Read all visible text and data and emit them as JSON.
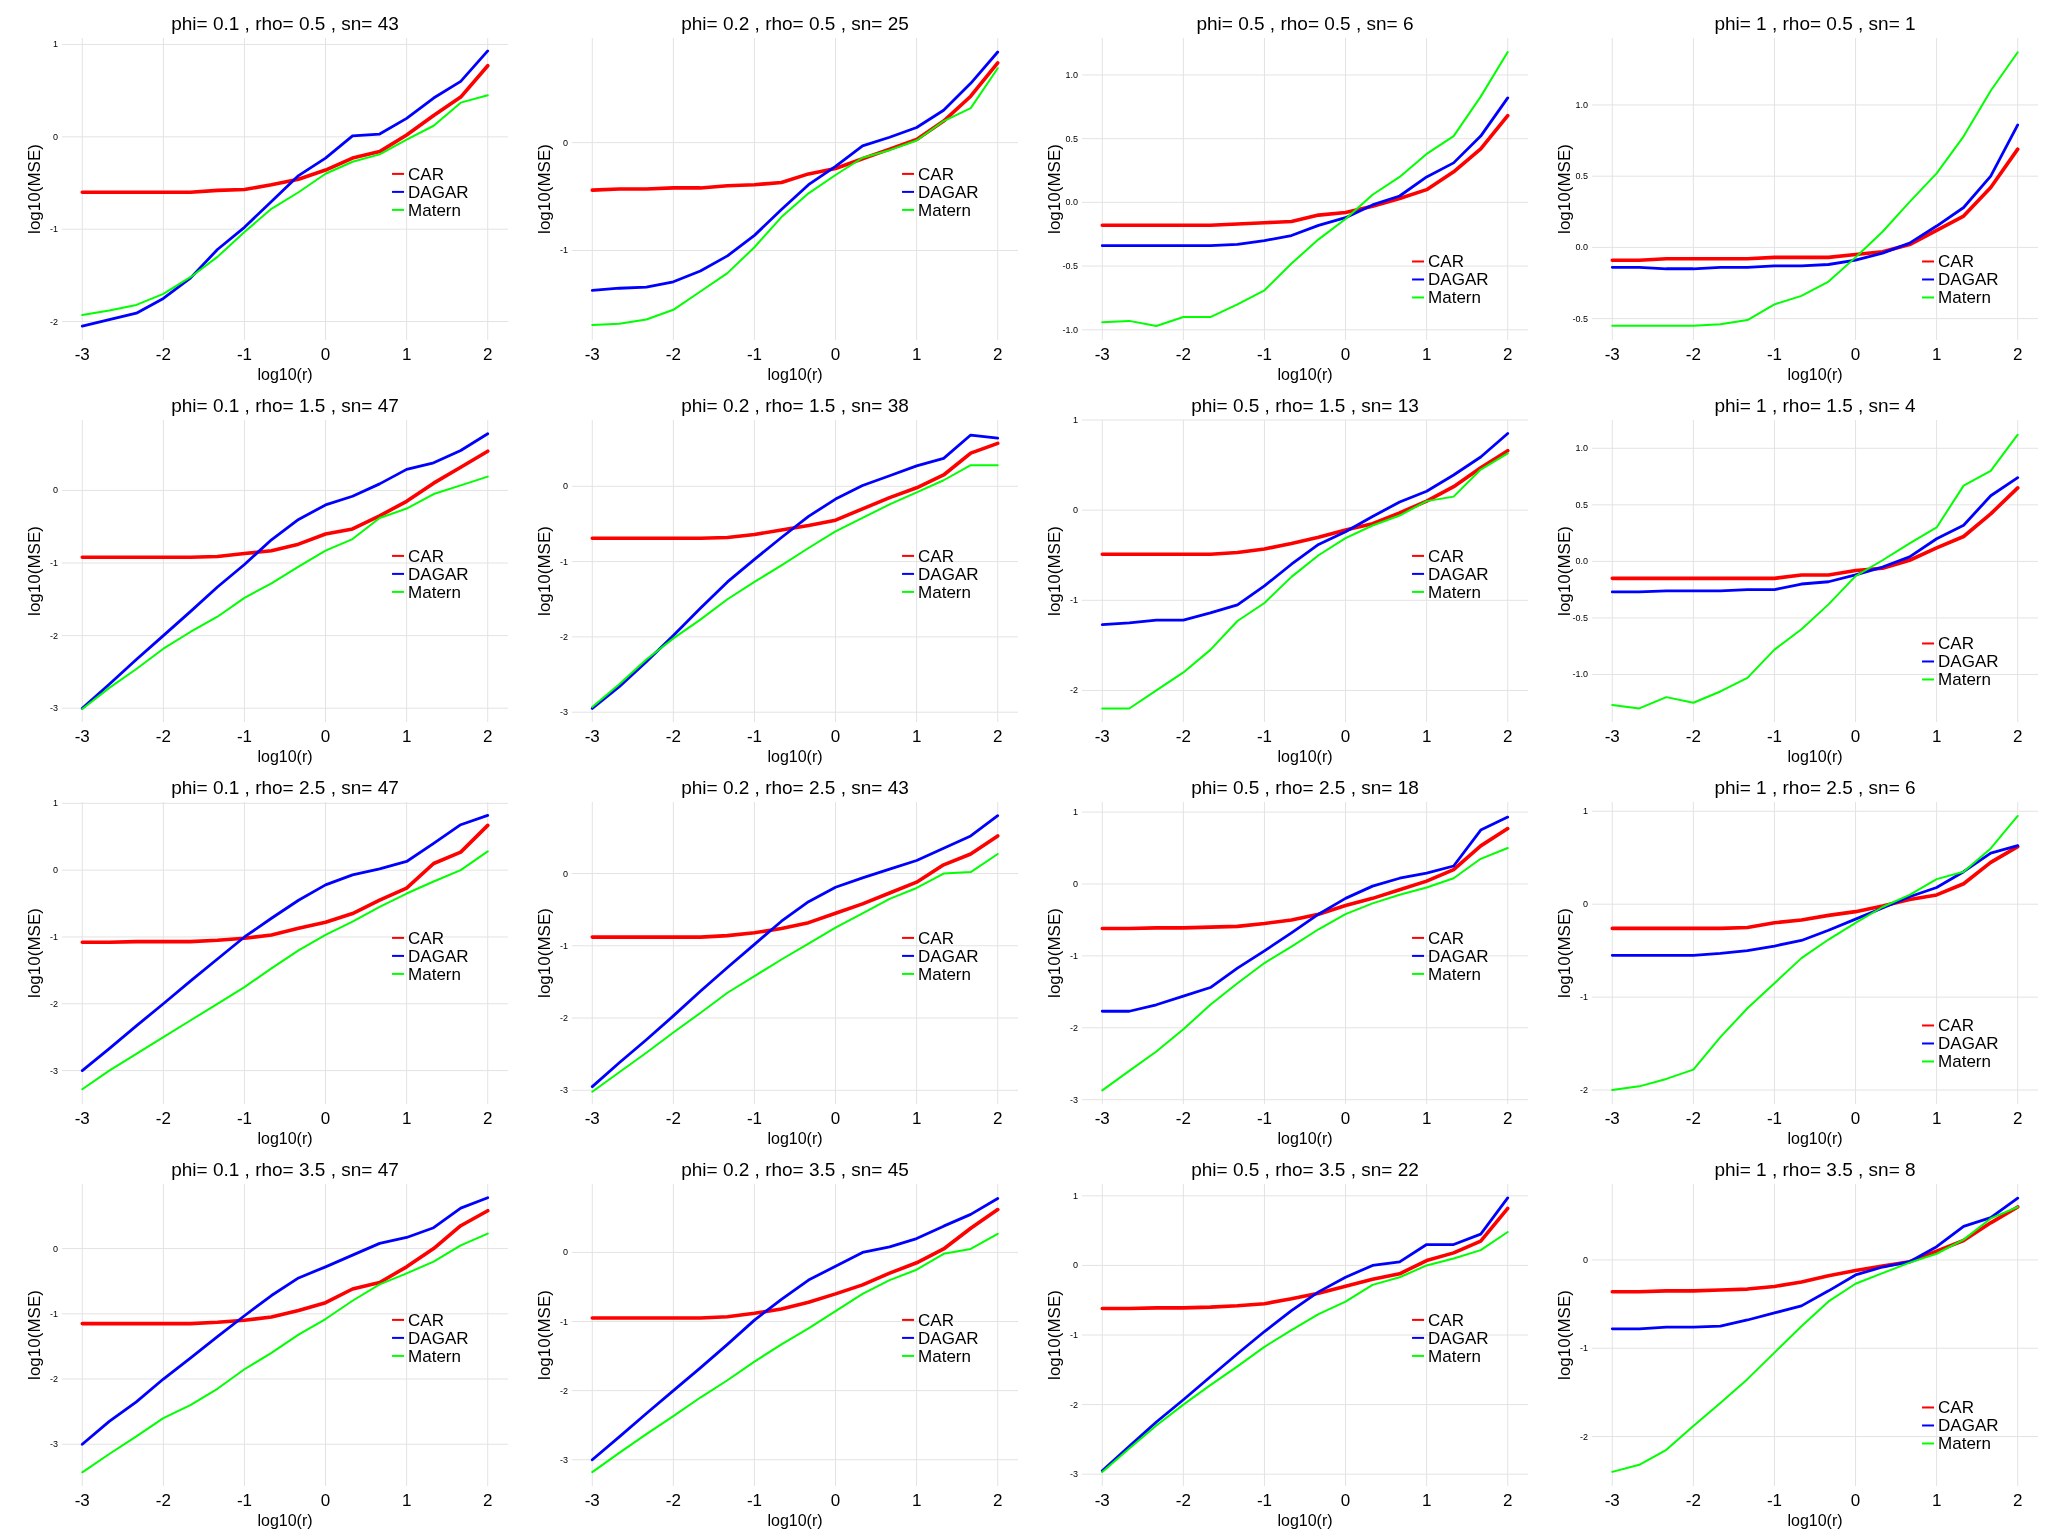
{
  "chart_data": [
    {
      "type": "line",
      "title": "phi= 0.1 , rho= 0.5 , sn= 43",
      "xlabel": "log10(r)",
      "ylabel": "log10(MSE)",
      "x": [
        -3,
        -2.667,
        -2.333,
        -2,
        -1.667,
        -1.333,
        -1,
        -0.667,
        -0.333,
        0,
        0.333,
        0.667,
        1,
        1.333,
        1.667,
        2
      ],
      "xlim": [
        -3.25,
        2.25
      ],
      "xticks": [
        -3,
        -2,
        -1,
        0,
        1,
        2
      ],
      "ylim": [
        -2.2,
        1.07
      ],
      "yticks": [
        -2,
        -1,
        0,
        1
      ],
      "grid": true,
      "legend": "right",
      "series": [
        {
          "name": "CAR",
          "color": "#ff0000",
          "values": [
            -0.6,
            -0.6,
            -0.6,
            -0.6,
            -0.6,
            -0.58,
            -0.57,
            -0.52,
            -0.46,
            -0.36,
            -0.23,
            -0.16,
            0.02,
            0.23,
            0.43,
            0.77
          ]
        },
        {
          "name": "DAGAR",
          "color": "#0000ff",
          "values": [
            -2.05,
            -1.98,
            -1.91,
            -1.75,
            -1.53,
            -1.22,
            -0.98,
            -0.7,
            -0.42,
            -0.23,
            0.01,
            0.03,
            0.2,
            0.42,
            0.6,
            0.93
          ]
        },
        {
          "name": "Matern",
          "color": "#00ff00",
          "values": [
            -1.93,
            -1.88,
            -1.82,
            -1.7,
            -1.52,
            -1.3,
            -1.03,
            -0.78,
            -0.6,
            -0.4,
            -0.27,
            -0.19,
            -0.03,
            0.12,
            0.37,
            0.45
          ]
        }
      ]
    },
    {
      "type": "line",
      "title": "phi= 0.2 , rho= 0.5 , sn= 25",
      "xlabel": "log10(r)",
      "ylabel": "log10(MSE)",
      "x": [
        -3,
        -2.667,
        -2.333,
        -2,
        -1.667,
        -1.333,
        -1,
        -0.667,
        -0.333,
        0,
        0.333,
        0.667,
        1,
        1.333,
        1.667,
        2
      ],
      "xlim": [
        -3.25,
        2.25
      ],
      "xticks": [
        -3,
        -2,
        -1,
        0,
        1,
        2
      ],
      "ylim": [
        -1.83,
        0.97
      ],
      "yticks": [
        -1,
        0
      ],
      "grid": true,
      "legend": "right",
      "series": [
        {
          "name": "CAR",
          "color": "#ff0000",
          "values": [
            -0.44,
            -0.43,
            -0.43,
            -0.42,
            -0.42,
            -0.4,
            -0.39,
            -0.37,
            -0.29,
            -0.24,
            -0.15,
            -0.06,
            0.03,
            0.2,
            0.43,
            0.74
          ]
        },
        {
          "name": "DAGAR",
          "color": "#0000ff",
          "values": [
            -1.37,
            -1.35,
            -1.34,
            -1.29,
            -1.19,
            -1.05,
            -0.86,
            -0.62,
            -0.39,
            -0.22,
            -0.03,
            0.05,
            0.14,
            0.3,
            0.55,
            0.84
          ]
        },
        {
          "name": "Matern",
          "color": "#00ff00",
          "values": [
            -1.69,
            -1.68,
            -1.64,
            -1.55,
            -1.38,
            -1.21,
            -0.97,
            -0.69,
            -0.47,
            -0.3,
            -0.14,
            -0.07,
            0.02,
            0.2,
            0.32,
            0.69
          ]
        }
      ]
    },
    {
      "type": "line",
      "title": "phi= 0.5 , rho= 0.5 , sn= 6",
      "xlabel": "log10(r)",
      "ylabel": "log10(MSE)",
      "x": [
        -3,
        -2.667,
        -2.333,
        -2,
        -1.667,
        -1.333,
        -1,
        -0.667,
        -0.333,
        0,
        0.333,
        0.667,
        1,
        1.333,
        1.667,
        2
      ],
      "xlim": [
        -3.25,
        2.25
      ],
      "xticks": [
        -3,
        -2,
        -1,
        0,
        1,
        2
      ],
      "ylim": [
        -1.08,
        1.29
      ],
      "yticks": [
        {
          "value": -1,
          "label": "-1.0"
        },
        -0.5,
        {
          "value": 0,
          "label": "0.0"
        },
        0.5,
        {
          "value": 1,
          "label": "1.0"
        }
      ],
      "grid": true,
      "legend": "bottom right",
      "series": [
        {
          "name": "CAR",
          "color": "#ff0000",
          "values": [
            -0.18,
            -0.18,
            -0.18,
            -0.18,
            -0.18,
            -0.17,
            -0.16,
            -0.15,
            -0.1,
            -0.08,
            -0.03,
            0.03,
            0.1,
            0.24,
            0.42,
            0.68
          ]
        },
        {
          "name": "DAGAR",
          "color": "#0000ff",
          "values": [
            -0.34,
            -0.34,
            -0.34,
            -0.34,
            -0.34,
            -0.33,
            -0.3,
            -0.26,
            -0.18,
            -0.12,
            -0.02,
            0.05,
            0.2,
            0.31,
            0.52,
            0.82
          ]
        },
        {
          "name": "Matern",
          "color": "#00ff00",
          "values": [
            -0.94,
            -0.93,
            -0.97,
            -0.9,
            -0.9,
            -0.8,
            -0.69,
            -0.48,
            -0.29,
            -0.13,
            0.06,
            0.2,
            0.38,
            0.52,
            0.83,
            1.18
          ]
        }
      ]
    },
    {
      "type": "line",
      "title": "phi= 1 , rho= 0.5 , sn= 1",
      "xlabel": "log10(r)",
      "ylabel": "log10(MSE)",
      "x": [
        -3,
        -2.667,
        -2.333,
        -2,
        -1.667,
        -1.333,
        -1,
        -0.667,
        -0.333,
        0,
        0.333,
        0.667,
        1,
        1.333,
        1.667,
        2
      ],
      "xlim": [
        -3.25,
        2.25
      ],
      "xticks": [
        -3,
        -2,
        -1,
        0,
        1,
        2
      ],
      "ylim": [
        -0.65,
        1.47
      ],
      "yticks": [
        -0.5,
        {
          "value": 0,
          "label": "0.0"
        },
        0.5,
        {
          "value": 1,
          "label": "1.0"
        }
      ],
      "grid": true,
      "legend": "bottom right",
      "series": [
        {
          "name": "CAR",
          "color": "#ff0000",
          "values": [
            -0.09,
            -0.09,
            -0.08,
            -0.08,
            -0.08,
            -0.08,
            -0.07,
            -0.07,
            -0.07,
            -0.05,
            -0.03,
            0.02,
            0.12,
            0.22,
            0.42,
            0.69
          ]
        },
        {
          "name": "DAGAR",
          "color": "#0000ff",
          "values": [
            -0.14,
            -0.14,
            -0.15,
            -0.15,
            -0.14,
            -0.14,
            -0.13,
            -0.13,
            -0.12,
            -0.09,
            -0.04,
            0.03,
            0.15,
            0.28,
            0.5,
            0.86
          ]
        },
        {
          "name": "Matern",
          "color": "#00ff00",
          "values": [
            -0.55,
            -0.55,
            -0.55,
            -0.55,
            -0.54,
            -0.51,
            -0.4,
            -0.34,
            -0.24,
            -0.07,
            0.11,
            0.32,
            0.52,
            0.78,
            1.1,
            1.37
          ]
        }
      ]
    },
    {
      "type": "line",
      "title": "phi= 0.1 , rho= 1.5 , sn= 47",
      "xlabel": "log10(r)",
      "ylabel": "log10(MSE)",
      "x": [
        -3,
        -2.667,
        -2.333,
        -2,
        -1.667,
        -1.333,
        -1,
        -0.667,
        -0.333,
        0,
        0.333,
        0.667,
        1,
        1.333,
        1.667,
        2
      ],
      "xlim": [
        -3.25,
        2.25
      ],
      "xticks": [
        -3,
        -2,
        -1,
        0,
        1,
        2
      ],
      "ylim": [
        -3.19,
        0.97
      ],
      "yticks": [
        -3,
        -2,
        -1,
        0
      ],
      "grid": true,
      "legend": "right",
      "series": [
        {
          "name": "CAR",
          "color": "#ff0000",
          "values": [
            -0.92,
            -0.92,
            -0.92,
            -0.92,
            -0.92,
            -0.91,
            -0.87,
            -0.83,
            -0.74,
            -0.6,
            -0.53,
            -0.35,
            -0.15,
            0.1,
            0.32,
            0.54
          ]
        },
        {
          "name": "DAGAR",
          "color": "#0000ff",
          "values": [
            -3,
            -2.67,
            -2.33,
            -2,
            -1.67,
            -1.33,
            -1.02,
            -0.68,
            -0.4,
            -0.2,
            -0.08,
            0.09,
            0.29,
            0.38,
            0.55,
            0.78
          ]
        },
        {
          "name": "Matern",
          "color": "#00ff00",
          "values": [
            -3.01,
            -2.72,
            -2.46,
            -2.18,
            -1.95,
            -1.74,
            -1.48,
            -1.28,
            -1.05,
            -0.83,
            -0.67,
            -0.38,
            -0.25,
            -0.05,
            0.07,
            0.19
          ]
        }
      ]
    },
    {
      "type": "line",
      "title": "phi= 0.2 , rho= 1.5 , sn= 38",
      "xlabel": "log10(r)",
      "ylabel": "log10(MSE)",
      "x": [
        -3,
        -2.667,
        -2.333,
        -2,
        -1.667,
        -1.333,
        -1,
        -0.667,
        -0.333,
        0,
        0.333,
        0.667,
        1,
        1.333,
        1.667,
        2
      ],
      "xlim": [
        -3.25,
        2.25
      ],
      "xticks": [
        -3,
        -2,
        -1,
        0,
        1,
        2
      ],
      "ylim": [
        -3.13,
        0.88
      ],
      "yticks": [
        -3,
        -2,
        -1,
        0
      ],
      "grid": true,
      "legend": "right",
      "series": [
        {
          "name": "CAR",
          "color": "#ff0000",
          "values": [
            -0.69,
            -0.69,
            -0.69,
            -0.69,
            -0.69,
            -0.68,
            -0.64,
            -0.58,
            -0.52,
            -0.45,
            -0.3,
            -0.15,
            -0.02,
            0.15,
            0.44,
            0.57
          ]
        },
        {
          "name": "DAGAR",
          "color": "#0000ff",
          "values": [
            -2.95,
            -2.66,
            -2.33,
            -1.98,
            -1.62,
            -1.27,
            -0.97,
            -0.68,
            -0.4,
            -0.17,
            0.01,
            0.14,
            0.27,
            0.37,
            0.68,
            0.64
          ]
        },
        {
          "name": "Matern",
          "color": "#00ff00",
          "values": [
            -2.93,
            -2.63,
            -2.3,
            -2.02,
            -1.77,
            -1.5,
            -1.27,
            -1.05,
            -0.82,
            -0.6,
            -0.42,
            -0.24,
            -0.08,
            0.08,
            0.28,
            0.28
          ]
        }
      ]
    },
    {
      "type": "line",
      "title": "phi= 0.5 , rho= 1.5 , sn= 13",
      "xlabel": "log10(r)",
      "ylabel": "log10(MSE)",
      "x": [
        -3,
        -2.667,
        -2.333,
        -2,
        -1.667,
        -1.333,
        -1,
        -0.667,
        -0.333,
        0,
        0.333,
        0.667,
        1,
        1.333,
        1.667,
        2
      ],
      "xlim": [
        -3.25,
        2.25
      ],
      "xticks": [
        -3,
        -2,
        -1,
        0,
        1,
        2
      ],
      "ylim": [
        -2.35,
        1
      ],
      "yticks": [
        -2,
        -1,
        0,
        1
      ],
      "grid": true,
      "legend": "right",
      "series": [
        {
          "name": "CAR",
          "color": "#ff0000",
          "values": [
            -0.49,
            -0.49,
            -0.49,
            -0.49,
            -0.49,
            -0.47,
            -0.43,
            -0.37,
            -0.3,
            -0.22,
            -0.15,
            -0.03,
            0.1,
            0.26,
            0.47,
            0.66
          ]
        },
        {
          "name": "DAGAR",
          "color": "#0000ff",
          "values": [
            -1.27,
            -1.25,
            -1.22,
            -1.22,
            -1.14,
            -1.05,
            -0.84,
            -0.6,
            -0.38,
            -0.24,
            -0.07,
            0.09,
            0.21,
            0.39,
            0.59,
            0.85
          ]
        },
        {
          "name": "Matern",
          "color": "#00ff00",
          "values": [
            -2.2,
            -2.2,
            -2,
            -1.8,
            -1.55,
            -1.23,
            -1.03,
            -0.74,
            -0.5,
            -0.31,
            -0.17,
            -0.06,
            0.1,
            0.15,
            0.45,
            0.63
          ]
        }
      ]
    },
    {
      "type": "line",
      "title": "phi= 1 , rho= 1.5 , sn= 4",
      "xlabel": "log10(r)",
      "ylabel": "log10(MSE)",
      "x": [
        -3,
        -2.667,
        -2.333,
        -2,
        -1.667,
        -1.333,
        -1,
        -0.667,
        -0.333,
        0,
        0.333,
        0.667,
        1,
        1.333,
        1.667,
        2
      ],
      "xlim": [
        -3.25,
        2.25
      ],
      "xticks": [
        -3,
        -2,
        -1,
        0,
        1,
        2
      ],
      "ylim": [
        -1.42,
        1.25
      ],
      "yticks": [
        {
          "value": -1,
          "label": "-1.0"
        },
        -0.5,
        {
          "value": 0,
          "label": "0.0"
        },
        0.5,
        {
          "value": 1,
          "label": "1.0"
        }
      ],
      "grid": true,
      "legend": "bottom right",
      "series": [
        {
          "name": "CAR",
          "color": "#ff0000",
          "values": [
            -0.15,
            -0.15,
            -0.15,
            -0.15,
            -0.15,
            -0.15,
            -0.15,
            -0.12,
            -0.12,
            -0.08,
            -0.06,
            0.01,
            0.12,
            0.22,
            0.42,
            0.65
          ]
        },
        {
          "name": "DAGAR",
          "color": "#0000ff",
          "values": [
            -0.27,
            -0.27,
            -0.26,
            -0.26,
            -0.26,
            -0.25,
            -0.25,
            -0.2,
            -0.18,
            -0.12,
            -0.05,
            0.04,
            0.2,
            0.32,
            0.58,
            0.74
          ]
        },
        {
          "name": "Matern",
          "color": "#00ff00",
          "values": [
            -1.27,
            -1.3,
            -1.2,
            -1.25,
            -1.15,
            -1.03,
            -0.78,
            -0.6,
            -0.38,
            -0.13,
            0.01,
            0.16,
            0.3,
            0.67,
            0.8,
            1.12
          ]
        }
      ]
    },
    {
      "type": "line",
      "title": "phi= 0.1 , rho= 2.5 , sn= 47",
      "xlabel": "log10(r)",
      "ylabel": "log10(MSE)",
      "x": [
        -3,
        -2.667,
        -2.333,
        -2,
        -1.667,
        -1.333,
        -1,
        -0.667,
        -0.333,
        0,
        0.333,
        0.667,
        1,
        1.333,
        1.667,
        2
      ],
      "xlim": [
        -3.25,
        2.25
      ],
      "xticks": [
        -3,
        -2,
        -1,
        0,
        1,
        2
      ],
      "ylim": [
        -3.5,
        1.02
      ],
      "yticks": [
        -3,
        -2,
        -1,
        0,
        1
      ],
      "grid": true,
      "legend": "right",
      "series": [
        {
          "name": "CAR",
          "color": "#ff0000",
          "values": [
            -1.08,
            -1.08,
            -1.07,
            -1.07,
            -1.07,
            -1.05,
            -1.02,
            -0.97,
            -0.87,
            -0.78,
            -0.65,
            -0.45,
            -0.27,
            0.1,
            0.27,
            0.67
          ]
        },
        {
          "name": "DAGAR",
          "color": "#0000ff",
          "values": [
            -3,
            -2.67,
            -2.33,
            -2,
            -1.66,
            -1.33,
            -1,
            -0.72,
            -0.45,
            -0.22,
            -0.07,
            0.02,
            0.13,
            0.4,
            0.68,
            0.82
          ]
        },
        {
          "name": "Matern",
          "color": "#00ff00",
          "values": [
            -3.28,
            -3,
            -2.75,
            -2.5,
            -2.25,
            -2,
            -1.75,
            -1.47,
            -1.2,
            -0.97,
            -0.77,
            -0.55,
            -0.35,
            -0.17,
            0,
            0.28
          ]
        }
      ]
    },
    {
      "type": "line",
      "title": "phi= 0.2 , rho= 2.5 , sn= 43",
      "xlabel": "log10(r)",
      "ylabel": "log10(MSE)",
      "x": [
        -3,
        -2.667,
        -2.333,
        -2,
        -1.667,
        -1.333,
        -1,
        -0.667,
        -0.333,
        0,
        0.333,
        0.667,
        1,
        1.333,
        1.667,
        2
      ],
      "xlim": [
        -3.25,
        2.25
      ],
      "xticks": [
        -3,
        -2,
        -1,
        0,
        1,
        2
      ],
      "ylim": [
        -3.19,
        0.99
      ],
      "yticks": [
        -3,
        -2,
        -1,
        0
      ],
      "grid": true,
      "legend": "right",
      "series": [
        {
          "name": "CAR",
          "color": "#ff0000",
          "values": [
            -0.88,
            -0.88,
            -0.88,
            -0.88,
            -0.88,
            -0.86,
            -0.82,
            -0.76,
            -0.68,
            -0.55,
            -0.42,
            -0.27,
            -0.12,
            0.12,
            0.27,
            0.52
          ]
        },
        {
          "name": "DAGAR",
          "color": "#0000ff",
          "values": [
            -2.95,
            -2.62,
            -2.3,
            -1.97,
            -1.63,
            -1.3,
            -0.98,
            -0.66,
            -0.39,
            -0.19,
            -0.06,
            0.06,
            0.18,
            0.35,
            0.52,
            0.8
          ]
        },
        {
          "name": "Matern",
          "color": "#00ff00",
          "values": [
            -3.02,
            -2.75,
            -2.48,
            -2.2,
            -1.93,
            -1.65,
            -1.42,
            -1.19,
            -0.97,
            -0.75,
            -0.55,
            -0.35,
            -0.2,
            0,
            0.02,
            0.27
          ]
        }
      ]
    },
    {
      "type": "line",
      "title": "phi= 0.5 , rho= 2.5 , sn= 18",
      "xlabel": "log10(r)",
      "ylabel": "log10(MSE)",
      "x": [
        -3,
        -2.667,
        -2.333,
        -2,
        -1.667,
        -1.333,
        -1,
        -0.667,
        -0.333,
        0,
        0.333,
        0.667,
        1,
        1.333,
        1.667,
        2
      ],
      "xlim": [
        -3.25,
        2.25
      ],
      "xticks": [
        -3,
        -2,
        -1,
        0,
        1,
        2
      ],
      "ylim": [
        -3.06,
        1.14
      ],
      "yticks": [
        -3,
        -2,
        -1,
        0,
        1
      ],
      "grid": true,
      "legend": "right",
      "series": [
        {
          "name": "CAR",
          "color": "#ff0000",
          "values": [
            -0.62,
            -0.62,
            -0.61,
            -0.61,
            -0.6,
            -0.59,
            -0.55,
            -0.5,
            -0.42,
            -0.3,
            -0.2,
            -0.08,
            0.04,
            0.2,
            0.53,
            0.77
          ]
        },
        {
          "name": "DAGAR",
          "color": "#0000ff",
          "values": [
            -1.77,
            -1.77,
            -1.68,
            -1.56,
            -1.44,
            -1.17,
            -0.93,
            -0.68,
            -0.42,
            -0.2,
            -0.03,
            0.08,
            0.15,
            0.25,
            0.75,
            0.93
          ]
        },
        {
          "name": "Matern",
          "color": "#00ff00",
          "values": [
            -2.87,
            -2.6,
            -2.33,
            -2.02,
            -1.68,
            -1.38,
            -1.1,
            -0.87,
            -0.63,
            -0.42,
            -0.27,
            -0.15,
            -0.05,
            0.08,
            0.35,
            0.5
          ]
        }
      ]
    },
    {
      "type": "line",
      "title": "phi= 1 , rho= 2.5 , sn= 6",
      "xlabel": "log10(r)",
      "ylabel": "log10(MSE)",
      "x": [
        -3,
        -2.667,
        -2.333,
        -2,
        -1.667,
        -1.333,
        -1,
        -0.667,
        -0.333,
        0,
        0.333,
        0.667,
        1,
        1.333,
        1.667,
        2
      ],
      "xlim": [
        -3.25,
        2.25
      ],
      "xticks": [
        -3,
        -2,
        -1,
        0,
        1,
        2
      ],
      "ylim": [
        -2.15,
        1.1
      ],
      "yticks": [
        -2,
        -1,
        0,
        1
      ],
      "grid": true,
      "legend": "bottom right",
      "series": [
        {
          "name": "CAR",
          "color": "#ff0000",
          "values": [
            -0.26,
            -0.26,
            -0.26,
            -0.26,
            -0.26,
            -0.25,
            -0.2,
            -0.17,
            -0.12,
            -0.08,
            -0.02,
            0.05,
            0.1,
            0.22,
            0.45,
            0.62
          ]
        },
        {
          "name": "DAGAR",
          "color": "#0000ff",
          "values": [
            -0.55,
            -0.55,
            -0.55,
            -0.55,
            -0.53,
            -0.5,
            -0.45,
            -0.39,
            -0.28,
            -0.16,
            -0.04,
            0.08,
            0.18,
            0.35,
            0.55,
            0.63
          ]
        },
        {
          "name": "Matern",
          "color": "#00ff00",
          "values": [
            -2,
            -1.96,
            -1.88,
            -1.78,
            -1.43,
            -1.12,
            -0.85,
            -0.58,
            -0.38,
            -0.2,
            -0.03,
            0.1,
            0.27,
            0.35,
            0.6,
            0.95
          ]
        }
      ]
    },
    {
      "type": "line",
      "title": "phi= 0.1 , rho= 3.5 , sn= 47",
      "xlabel": "log10(r)",
      "ylabel": "log10(MSE)",
      "x": [
        -3,
        -2.667,
        -2.333,
        -2,
        -1.667,
        -1.333,
        -1,
        -0.667,
        -0.333,
        0,
        0.333,
        0.667,
        1,
        1.333,
        1.667,
        2
      ],
      "xlim": [
        -3.25,
        2.25
      ],
      "xticks": [
        -3,
        -2,
        -1,
        0,
        1,
        2
      ],
      "ylim": [
        -3.64,
        0.99
      ],
      "yticks": [
        -3,
        -2,
        -1,
        0
      ],
      "grid": true,
      "legend": "right",
      "series": [
        {
          "name": "CAR",
          "color": "#ff0000",
          "values": [
            -1.15,
            -1.15,
            -1.15,
            -1.15,
            -1.15,
            -1.13,
            -1.1,
            -1.05,
            -0.95,
            -0.83,
            -0.62,
            -0.52,
            -0.28,
            0,
            0.35,
            0.58
          ]
        },
        {
          "name": "DAGAR",
          "color": "#0000ff",
          "values": [
            -3,
            -2.65,
            -2.35,
            -2,
            -1.68,
            -1.35,
            -1.03,
            -0.72,
            -0.45,
            -0.28,
            -0.1,
            0.08,
            0.17,
            0.32,
            0.62,
            0.78
          ]
        },
        {
          "name": "Matern",
          "color": "#00ff00",
          "values": [
            -3.43,
            -3.15,
            -2.88,
            -2.6,
            -2.4,
            -2.15,
            -1.85,
            -1.6,
            -1.32,
            -1.08,
            -0.8,
            -0.55,
            -0.38,
            -0.2,
            0.05,
            0.23
          ]
        }
      ]
    },
    {
      "type": "line",
      "title": "phi= 0.2 , rho= 3.5 , sn= 45",
      "xlabel": "log10(r)",
      "ylabel": "log10(MSE)",
      "x": [
        -3,
        -2.667,
        -2.333,
        -2,
        -1.667,
        -1.333,
        -1,
        -0.667,
        -0.333,
        0,
        0.333,
        0.667,
        1,
        1.333,
        1.667,
        2
      ],
      "xlim": [
        -3.25,
        2.25
      ],
      "xticks": [
        -3,
        -2,
        -1,
        0,
        1,
        2
      ],
      "ylim": [
        -3.38,
        0.99
      ],
      "yticks": [
        -3,
        -2,
        -1,
        0
      ],
      "grid": true,
      "legend": "right",
      "series": [
        {
          "name": "CAR",
          "color": "#ff0000",
          "values": [
            -0.95,
            -0.95,
            -0.95,
            -0.95,
            -0.95,
            -0.93,
            -0.88,
            -0.82,
            -0.72,
            -0.6,
            -0.47,
            -0.3,
            -0.15,
            0.05,
            0.35,
            0.62
          ]
        },
        {
          "name": "DAGAR",
          "color": "#0000ff",
          "values": [
            -3,
            -2.67,
            -2.33,
            -2,
            -1.67,
            -1.33,
            -0.98,
            -0.68,
            -0.4,
            -0.2,
            0,
            0.08,
            0.2,
            0.38,
            0.55,
            0.78
          ]
        },
        {
          "name": "Matern",
          "color": "#00ff00",
          "values": [
            -3.18,
            -2.9,
            -2.63,
            -2.37,
            -2.1,
            -1.85,
            -1.58,
            -1.33,
            -1.1,
            -0.85,
            -0.6,
            -0.4,
            -0.25,
            -0.02,
            0.05,
            0.27
          ]
        }
      ]
    },
    {
      "type": "line",
      "title": "phi= 0.5 , rho= 3.5 , sn= 22",
      "xlabel": "log10(r)",
      "ylabel": "log10(MSE)",
      "x": [
        -3,
        -2.667,
        -2.333,
        -2,
        -1.667,
        -1.333,
        -1,
        -0.667,
        -0.333,
        0,
        0.333,
        0.667,
        1,
        1.333,
        1.667,
        2
      ],
      "xlim": [
        -3.25,
        2.25
      ],
      "xticks": [
        -3,
        -2,
        -1,
        0,
        1,
        2
      ],
      "ylim": [
        -3.17,
        1.17
      ],
      "yticks": [
        -3,
        -2,
        -1,
        0,
        1
      ],
      "grid": true,
      "legend": "right",
      "series": [
        {
          "name": "CAR",
          "color": "#ff0000",
          "values": [
            -0.62,
            -0.62,
            -0.61,
            -0.61,
            -0.6,
            -0.58,
            -0.55,
            -0.48,
            -0.4,
            -0.3,
            -0.2,
            -0.12,
            0.07,
            0.18,
            0.35,
            0.82
          ]
        },
        {
          "name": "DAGAR",
          "color": "#0000ff",
          "values": [
            -2.95,
            -2.6,
            -2.25,
            -1.93,
            -1.6,
            -1.27,
            -0.95,
            -0.65,
            -0.38,
            -0.17,
            0,
            0.05,
            0.3,
            0.3,
            0.45,
            0.97
          ]
        },
        {
          "name": "Matern",
          "color": "#00ff00",
          "values": [
            -2.97,
            -2.63,
            -2.3,
            -2,
            -1.72,
            -1.45,
            -1.17,
            -0.93,
            -0.7,
            -0.52,
            -0.28,
            -0.17,
            0,
            0.1,
            0.22,
            0.48
          ]
        }
      ]
    },
    {
      "type": "line",
      "title": "phi= 1 , rho= 3.5 , sn= 8",
      "xlabel": "log10(r)",
      "ylabel": "log10(MSE)",
      "x": [
        -3,
        -2.667,
        -2.333,
        -2,
        -1.667,
        -1.333,
        -1,
        -0.667,
        -0.333,
        0,
        0.333,
        0.667,
        1,
        1.333,
        1.667,
        2
      ],
      "xlim": [
        -3.25,
        2.25
      ],
      "xticks": [
        -3,
        -2,
        -1,
        0,
        1,
        2
      ],
      "ylim": [
        -2.56,
        0.86
      ],
      "yticks": [
        -2,
        -1,
        0
      ],
      "grid": true,
      "legend": "bottom right",
      "series": [
        {
          "name": "CAR",
          "color": "#ff0000",
          "values": [
            -0.36,
            -0.36,
            -0.35,
            -0.35,
            -0.34,
            -0.33,
            -0.3,
            -0.25,
            -0.18,
            -0.12,
            -0.07,
            -0.02,
            0.1,
            0.22,
            0.42,
            0.6
          ]
        },
        {
          "name": "DAGAR",
          "color": "#0000ff",
          "values": [
            -0.78,
            -0.78,
            -0.76,
            -0.76,
            -0.75,
            -0.68,
            -0.6,
            -0.52,
            -0.35,
            -0.17,
            -0.08,
            -0.02,
            0.15,
            0.38,
            0.48,
            0.7
          ]
        },
        {
          "name": "Matern",
          "color": "#00ff00",
          "values": [
            -2.4,
            -2.32,
            -2.15,
            -1.88,
            -1.62,
            -1.35,
            -1.05,
            -0.75,
            -0.47,
            -0.27,
            -0.15,
            -0.03,
            0.07,
            0.23,
            0.47,
            0.6
          ]
        }
      ]
    }
  ]
}
